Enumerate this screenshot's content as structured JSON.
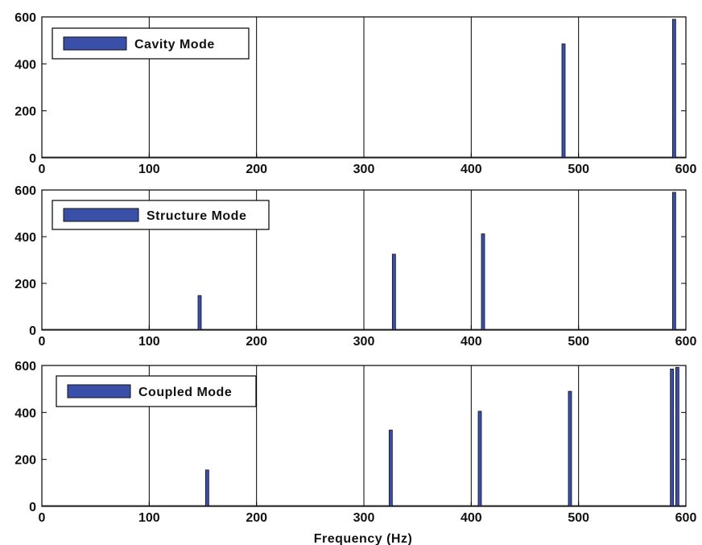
{
  "colors": {
    "bar_fill": "#3a4fa8",
    "bar_edge": "#111111",
    "grid": "#000000",
    "axis": "#000000",
    "background": "#ffffff"
  },
  "chart_data": [
    {
      "type": "bar",
      "legend": {
        "label": "Cavity Mode",
        "position": "top-left"
      },
      "xlim": [
        0,
        600
      ],
      "ylim": [
        0,
        600
      ],
      "xticks": [
        0,
        100,
        200,
        300,
        400,
        500,
        600
      ],
      "yticks": [
        0,
        200,
        400,
        600
      ],
      "grid": "x",
      "x": [
        486,
        589
      ],
      "values": [
        485,
        590
      ]
    },
    {
      "type": "bar",
      "legend": {
        "label": "Structure Mode",
        "position": "top-left"
      },
      "xlim": [
        0,
        600
      ],
      "ylim": [
        0,
        600
      ],
      "xticks": [
        0,
        100,
        200,
        300,
        400,
        500,
        600
      ],
      "yticks": [
        0,
        200,
        400,
        600
      ],
      "grid": "x",
      "x": [
        147,
        328,
        411,
        589
      ],
      "values": [
        148,
        325,
        412,
        590
      ]
    },
    {
      "type": "bar",
      "legend": {
        "label": "Coupled Mode",
        "position": "top-left"
      },
      "xlim": [
        0,
        600
      ],
      "ylim": [
        0,
        600
      ],
      "xticks": [
        0,
        100,
        200,
        300,
        400,
        500,
        600
      ],
      "yticks": [
        0,
        200,
        400,
        600
      ],
      "grid": "x",
      "xlabel": "Frequency (Hz)",
      "x": [
        154,
        325,
        408,
        492,
        587,
        592
      ],
      "values": [
        155,
        325,
        405,
        490,
        585,
        592
      ]
    }
  ]
}
